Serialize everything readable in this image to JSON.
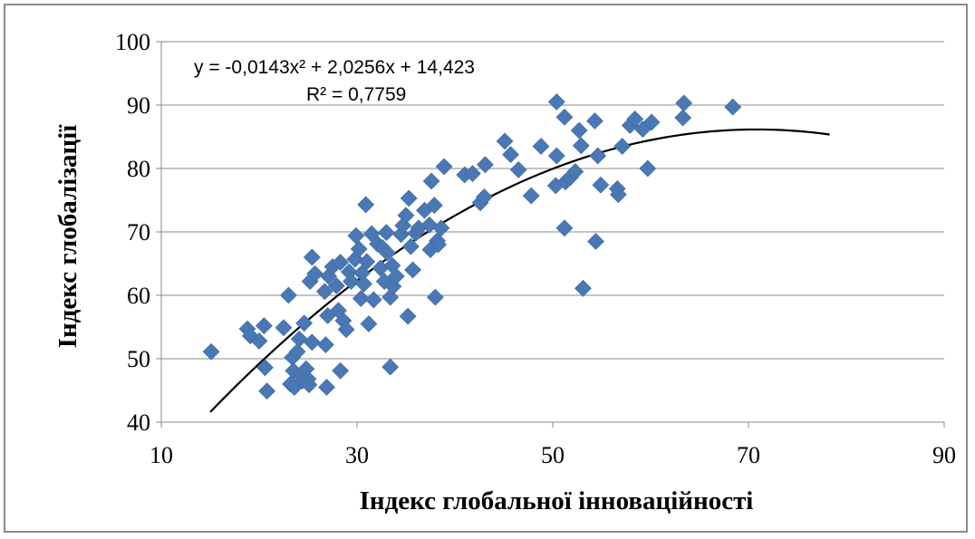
{
  "chart_data": {
    "type": "scatter",
    "xlabel": "Індекс глобальної інноваційності",
    "ylabel": "Індекс глобалізації",
    "xlim": [
      10,
      90
    ],
    "ylim": [
      40,
      100
    ],
    "xticks": [
      "10",
      "30",
      "50",
      "70",
      "90"
    ],
    "yticks": [
      "40",
      "50",
      "60",
      "70",
      "80",
      "90",
      "100"
    ],
    "grid": "horizontal",
    "marker_color": "#4a78b5",
    "trendline_color": "#000000",
    "trendline": {
      "type": "polynomial",
      "equation_label": "y = -0,0143x² + 2,0256x + 14,423",
      "r2_label": "R² = 0,7759",
      "coefficients": [
        -0.0143,
        2.0256,
        14.423
      ],
      "x_range": [
        15,
        78.3
      ]
    },
    "points": [
      [
        15.1,
        51.1
      ],
      [
        18.8,
        54.7
      ],
      [
        19.1,
        53.6
      ],
      [
        20.0,
        52.8
      ],
      [
        20.5,
        55.2
      ],
      [
        20.6,
        48.6
      ],
      [
        20.8,
        44.9
      ],
      [
        22.5,
        54.9
      ],
      [
        23.0,
        60.0
      ],
      [
        23.2,
        46.0
      ],
      [
        23.4,
        50.2
      ],
      [
        23.5,
        48.1
      ],
      [
        23.6,
        45.5
      ],
      [
        23.9,
        51.1
      ],
      [
        24.1,
        53.1
      ],
      [
        24.3,
        47.2
      ],
      [
        24.4,
        46.5
      ],
      [
        24.6,
        55.6
      ],
      [
        24.8,
        48.4
      ],
      [
        25.0,
        46.8
      ],
      [
        25.1,
        45.9
      ],
      [
        25.2,
        62.2
      ],
      [
        25.4,
        52.6
      ],
      [
        25.4,
        66.0
      ],
      [
        25.7,
        63.4
      ],
      [
        26.7,
        60.6
      ],
      [
        26.8,
        52.2
      ],
      [
        26.9,
        45.5
      ],
      [
        27.0,
        56.8
      ],
      [
        27.1,
        63.0
      ],
      [
        27.5,
        64.5
      ],
      [
        27.9,
        61.5
      ],
      [
        28.1,
        57.6
      ],
      [
        28.3,
        48.1
      ],
      [
        28.3,
        65.2
      ],
      [
        28.6,
        56.0
      ],
      [
        28.9,
        54.6
      ],
      [
        29.2,
        63.7
      ],
      [
        29.4,
        62.2
      ],
      [
        29.8,
        65.7
      ],
      [
        29.9,
        69.4
      ],
      [
        30.2,
        67.3
      ],
      [
        30.4,
        59.5
      ],
      [
        30.5,
        63.5
      ],
      [
        30.7,
        61.8
      ],
      [
        30.9,
        74.3
      ],
      [
        31.0,
        65.3
      ],
      [
        31.2,
        55.5
      ],
      [
        31.5,
        69.7
      ],
      [
        31.7,
        59.3
      ],
      [
        32.1,
        68.1
      ],
      [
        32.4,
        64.3
      ],
      [
        32.6,
        67.5
      ],
      [
        32.8,
        62.2
      ],
      [
        33.0,
        69.9
      ],
      [
        33.1,
        66.7
      ],
      [
        33.4,
        59.7
      ],
      [
        33.4,
        48.7
      ],
      [
        33.6,
        64.7
      ],
      [
        33.7,
        61.4
      ],
      [
        34.0,
        63.0
      ],
      [
        34.5,
        69.6
      ],
      [
        34.7,
        71.0
      ],
      [
        35.0,
        72.6
      ],
      [
        35.2,
        56.7
      ],
      [
        35.3,
        75.3
      ],
      [
        35.5,
        67.7
      ],
      [
        35.7,
        64.0
      ],
      [
        36.0,
        69.8
      ],
      [
        36.3,
        70.6
      ],
      [
        36.9,
        73.4
      ],
      [
        37.4,
        71.1
      ],
      [
        37.5,
        67.2
      ],
      [
        37.6,
        78.0
      ],
      [
        37.9,
        74.2
      ],
      [
        38.0,
        59.7
      ],
      [
        38.2,
        68.6
      ],
      [
        38.3,
        68.0
      ],
      [
        38.6,
        70.6
      ],
      [
        38.9,
        80.3
      ],
      [
        41.0,
        79.0
      ],
      [
        41.8,
        79.2
      ],
      [
        42.6,
        74.6
      ],
      [
        43.0,
        75.5
      ],
      [
        43.1,
        80.6
      ],
      [
        45.1,
        84.3
      ],
      [
        45.7,
        82.2
      ],
      [
        46.5,
        79.8
      ],
      [
        47.8,
        75.7
      ],
      [
        48.8,
        83.5
      ],
      [
        50.3,
        77.3
      ],
      [
        50.4,
        82.0
      ],
      [
        50.4,
        90.5
      ],
      [
        51.2,
        88.1
      ],
      [
        51.2,
        70.6
      ],
      [
        51.3,
        77.9
      ],
      [
        51.8,
        78.6
      ],
      [
        52.3,
        79.5
      ],
      [
        52.7,
        86.0
      ],
      [
        52.9,
        83.6
      ],
      [
        53.1,
        61.1
      ],
      [
        54.3,
        87.5
      ],
      [
        54.4,
        68.5
      ],
      [
        54.6,
        82.0
      ],
      [
        54.9,
        77.4
      ],
      [
        56.6,
        76.8
      ],
      [
        56.7,
        75.9
      ],
      [
        57.1,
        83.5
      ],
      [
        57.9,
        86.8
      ],
      [
        58.4,
        87.8
      ],
      [
        59.2,
        86.2
      ],
      [
        59.7,
        80.0
      ],
      [
        60.1,
        87.3
      ],
      [
        63.3,
        88.0
      ],
      [
        63.4,
        90.3
      ],
      [
        68.4,
        89.7
      ]
    ]
  }
}
